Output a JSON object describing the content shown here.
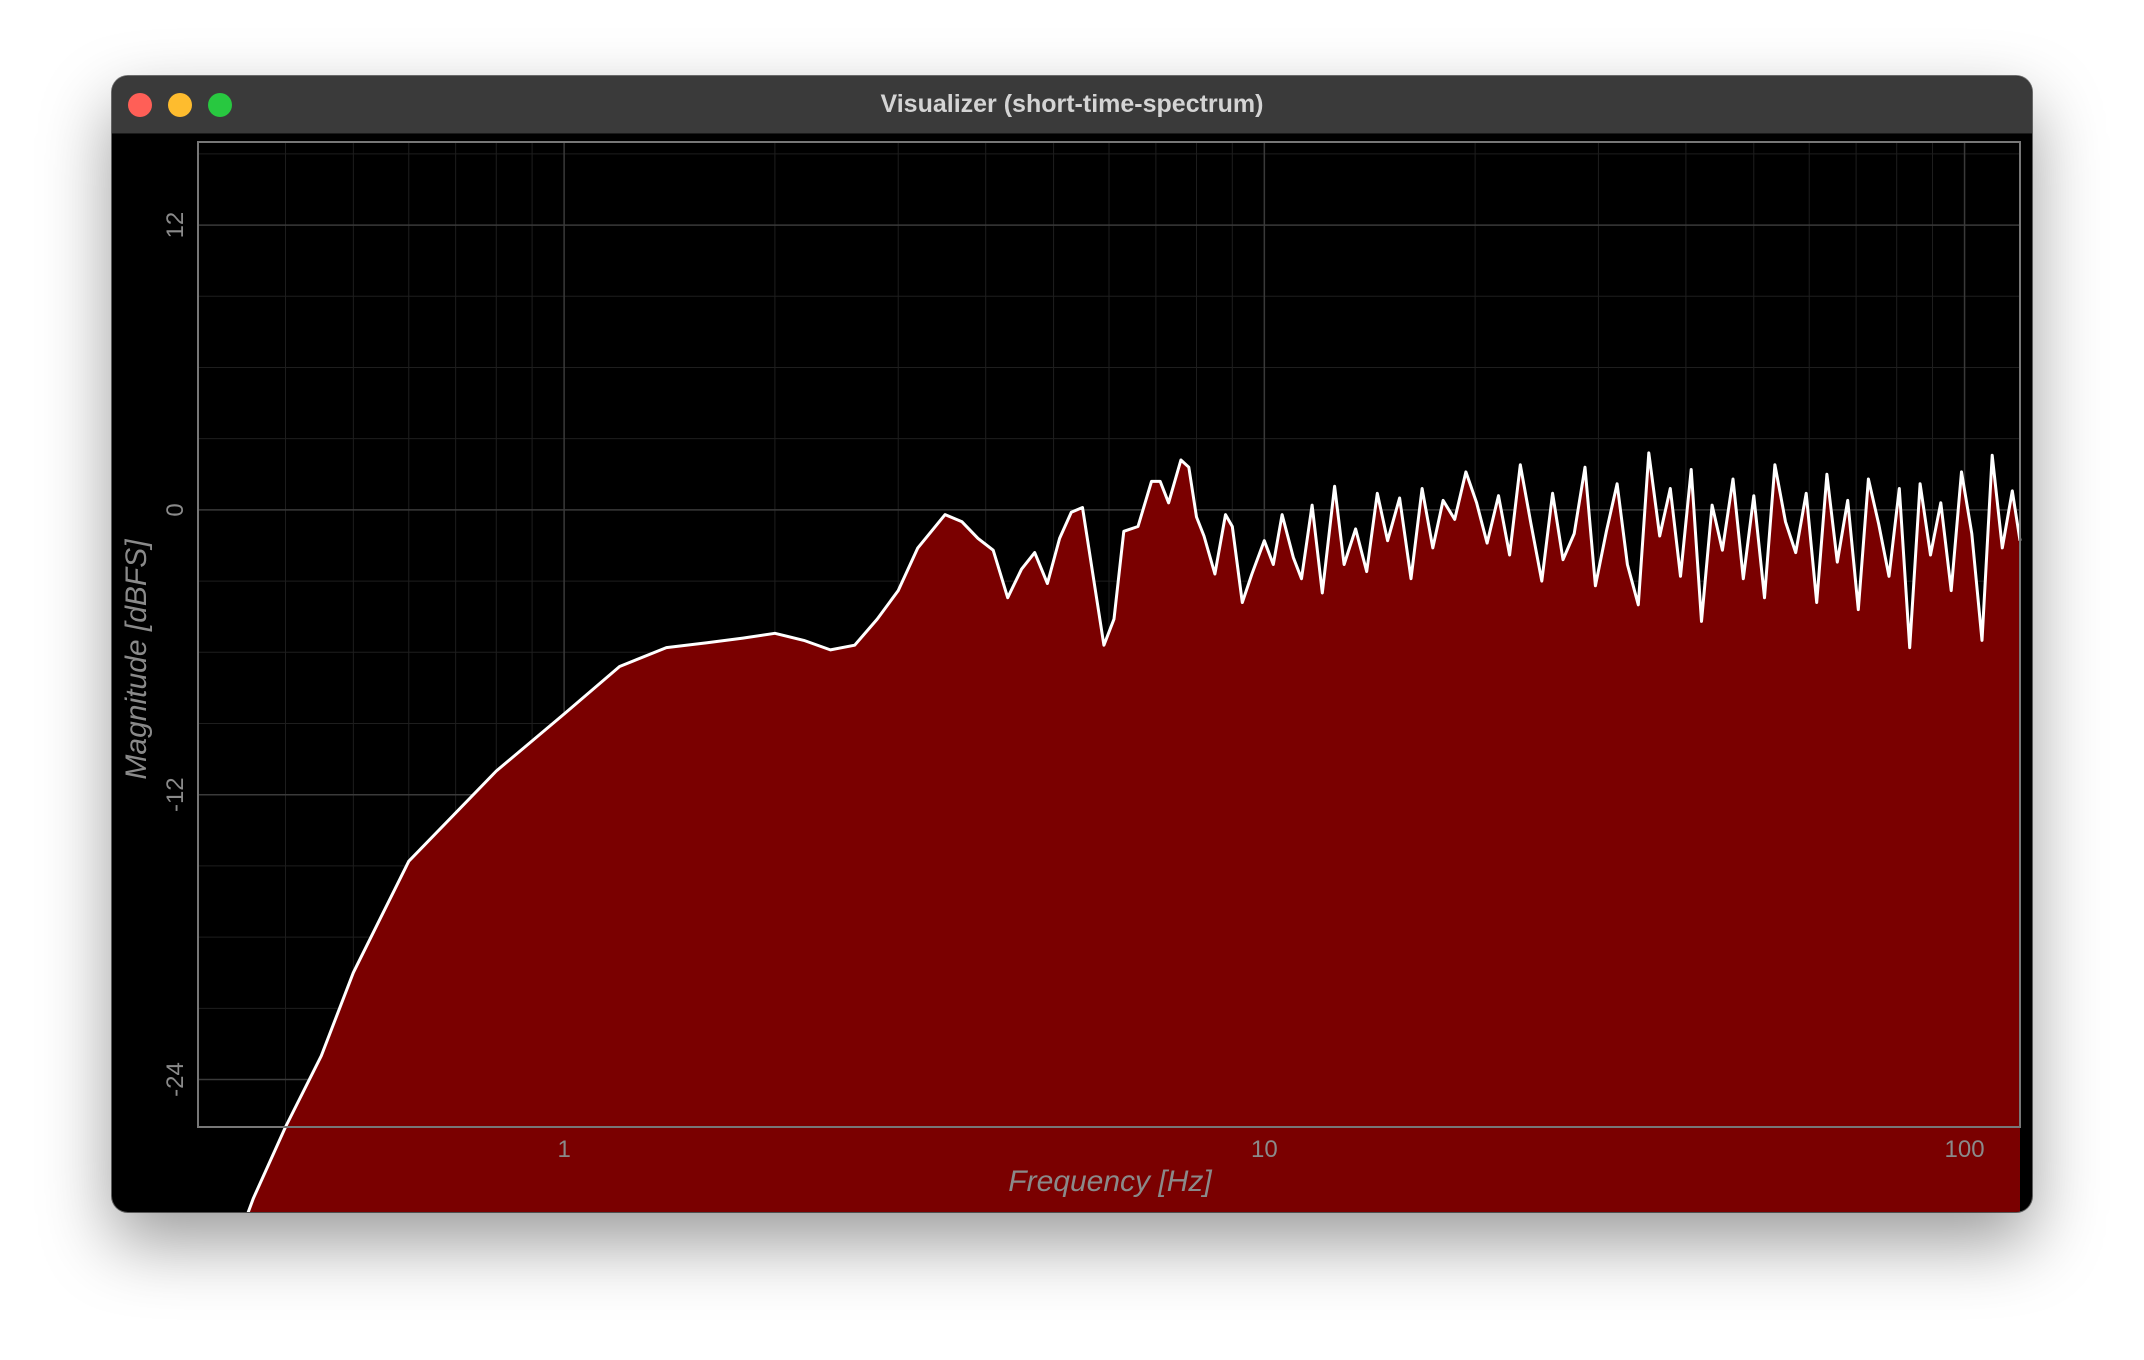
{
  "window": {
    "title": "Visualizer (short-time-spectrum)"
  },
  "colors": {
    "background": "#000000",
    "fill": "#7a0000",
    "line": "#ffffff",
    "grid": "#3a3a3a",
    "axis_text": "#8a8a8a"
  },
  "chart_data": {
    "type": "area",
    "title": "",
    "xlabel": "Frequency [Hz]",
    "ylabel": "Magnitude [dBFS]",
    "xscale": "log",
    "xlim": [
      0.3,
      120
    ],
    "ylim": [
      -26,
      15.5
    ],
    "xticks": [
      {
        "value": 1,
        "label": "1"
      },
      {
        "value": 10,
        "label": "10"
      },
      {
        "value": 100,
        "label": "100"
      }
    ],
    "yticks": [
      {
        "value": 12,
        "label": "12"
      },
      {
        "value": 0,
        "label": "0"
      },
      {
        "value": -12,
        "label": "-12"
      },
      {
        "value": -24,
        "label": "-24"
      }
    ],
    "grid": true,
    "series": [
      {
        "x": [
          0.31,
          0.33,
          0.36,
          0.4,
          0.45,
          0.5,
          0.6,
          0.8,
          1.0,
          1.2,
          1.4,
          1.6,
          1.8,
          2.0,
          2.2,
          2.4,
          2.6,
          2.8,
          3.0,
          3.2,
          3.5,
          3.7,
          3.9,
          4.1,
          4.3,
          4.5,
          4.7,
          4.9,
          5.1,
          5.3,
          5.5,
          5.9,
          6.1,
          6.3,
          6.6,
          6.9,
          7.1,
          7.3,
          7.6,
          7.8,
          8.0,
          8.2,
          8.5,
          8.8,
          9.0,
          9.3,
          9.6,
          10.0,
          10.3,
          10.6,
          11.0,
          11.3,
          11.7,
          12.1,
          12.6,
          13.0,
          13.5,
          14.0,
          14.5,
          15.0,
          15.6,
          16.2,
          16.8,
          17.4,
          18.0,
          18.7,
          19.4,
          20.1,
          20.8,
          21.6,
          22.4,
          23.2,
          24.0,
          24.9,
          25.8,
          26.7,
          27.7,
          28.7,
          29.7,
          30.8,
          31.9,
          33.0,
          34.2,
          35.4,
          36.7,
          38.0,
          39.3,
          40.7,
          42.1,
          43.6,
          45.1,
          46.7,
          48.3,
          50.0,
          51.8,
          53.6,
          55.5,
          57.4,
          59.4,
          61.5,
          63.6,
          65.8,
          68.1,
          70.5,
          72.9,
          75.4,
          78.0,
          80.7,
          83.5,
          86.4,
          89.4,
          92.5,
          95.7,
          99.0,
          102.4,
          105.9,
          109.5,
          113.2,
          117.0,
          120.0
        ],
        "y": [
          -34.5,
          -32.0,
          -29.0,
          -26.0,
          -23.0,
          -19.5,
          -14.8,
          -11.0,
          -8.6,
          -6.6,
          -5.8,
          -5.6,
          -5.4,
          -5.2,
          -5.5,
          -5.9,
          -5.7,
          -4.6,
          -3.4,
          -1.6,
          -0.2,
          -0.5,
          -1.2,
          -1.7,
          -3.7,
          -2.5,
          -1.8,
          -3.1,
          -1.2,
          -0.1,
          0.1,
          -5.7,
          -4.6,
          -0.9,
          -0.7,
          1.2,
          1.2,
          0.3,
          2.1,
          1.8,
          -0.3,
          -1.1,
          -2.7,
          -0.2,
          -0.7,
          -3.9,
          -2.7,
          -1.3,
          -2.3,
          -0.2,
          -2.0,
          -2.9,
          0.2,
          -3.5,
          1.0,
          -2.3,
          -0.8,
          -2.6,
          0.7,
          -1.3,
          0.5,
          -2.9,
          0.9,
          -1.6,
          0.4,
          -0.4,
          1.6,
          0.3,
          -1.4,
          0.6,
          -1.9,
          1.9,
          -0.5,
          -3.0,
          0.7,
          -2.1,
          -1.0,
          1.8,
          -3.2,
          -0.9,
          1.1,
          -2.3,
          -4.0,
          2.4,
          -1.1,
          0.9,
          -2.8,
          1.7,
          -4.7,
          0.2,
          -1.7,
          1.3,
          -2.9,
          0.6,
          -3.7,
          1.9,
          -0.5,
          -1.8,
          0.7,
          -3.9,
          1.5,
          -2.2,
          0.4,
          -4.2,
          1.3,
          -0.6,
          -2.8,
          0.9,
          -5.8,
          1.1,
          -1.9,
          0.3,
          -3.4,
          1.6,
          -1.0,
          -5.5,
          2.3,
          -1.6,
          0.8,
          -1.3
        ]
      }
    ]
  }
}
